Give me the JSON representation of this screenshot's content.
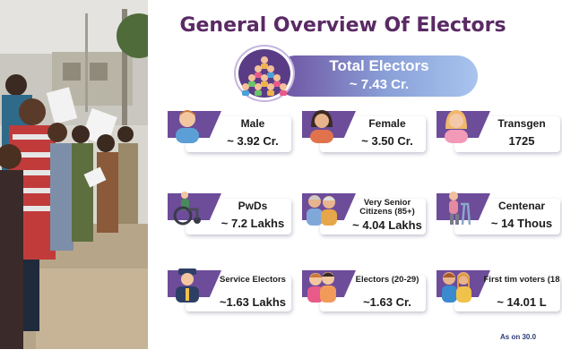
{
  "title": "General Overview Of Electors",
  "total": {
    "label": "Total Electors",
    "value": "~ 7.43 Cr."
  },
  "cards": [
    {
      "label": "Male",
      "value": "~ 3.92 Cr.",
      "icon": "male-person-icon"
    },
    {
      "label": "Female",
      "value": "~ 3.50 Cr.",
      "icon": "female-person-icon"
    },
    {
      "label": "Transgen",
      "value": "1725",
      "icon": "transgender-person-icon"
    },
    {
      "label": "PwDs",
      "value": "~ 7.2 Lakhs",
      "icon": "wheelchair-icon"
    },
    {
      "label": "Very Senior Citizens (85+)",
      "value": "~ 4.04 Lakhs",
      "icon": "elderly-couple-icon"
    },
    {
      "label": "Centenar",
      "value": "~ 14 Thous",
      "icon": "elderly-walker-icon"
    },
    {
      "label": "Service Electors",
      "value": "~1.63 Lakhs",
      "icon": "soldier-icon"
    },
    {
      "label": "Electors (20-29)",
      "value": "~1.63 Cr.",
      "icon": "young-couple-icon"
    },
    {
      "label": "First tim voters (18",
      "value": "~ 14.01 L",
      "icon": "first-time-voters-icon"
    }
  ],
  "footnote": "As on 30.0",
  "colors": {
    "title": "#5a2a64",
    "accent": "#6d4c9a",
    "pill_start": "#6d4f9f",
    "pill_end": "#a8c4ee"
  }
}
